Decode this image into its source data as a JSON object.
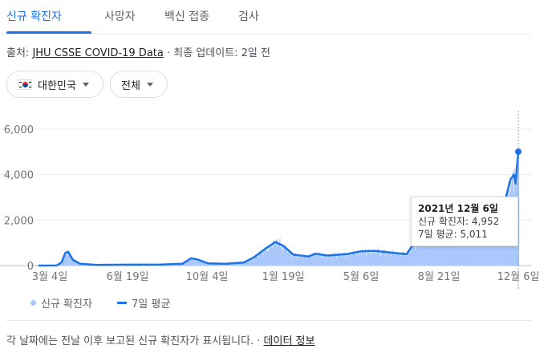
{
  "tabs": [
    {
      "label": "신규 확진자",
      "active": true
    },
    {
      "label": "사망자",
      "active": false
    },
    {
      "label": "백신 접종",
      "active": false
    },
    {
      "label": "검사",
      "active": false
    }
  ],
  "source": {
    "prefix": "출처: ",
    "link": "JHU CSSE COVID-19 Data",
    "suffix": " · 최종 업데이트: 2일 전"
  },
  "filters": {
    "country": {
      "flag": "south-korea-flag",
      "label": "대한민국"
    },
    "scope": {
      "label": "전체"
    }
  },
  "colors": {
    "accent": "#1a73e8",
    "bars": "#a8c7fa",
    "text": "#202124",
    "muted": "#5f6368"
  },
  "chart_data": {
    "type": "bar",
    "overlay": "line",
    "yticks": [
      "6,000",
      "4,000",
      "2,000",
      "0"
    ],
    "ytick_values": [
      6000,
      4000,
      2000,
      0
    ],
    "ylim": [
      0,
      7000
    ],
    "xticks": [
      "3월 4일",
      "6월 19일",
      "10월 4일",
      "1월 19일",
      "5월 6일",
      "8월 21일",
      "12월 6일"
    ],
    "x_range": [
      "2020-01-23",
      "2021-12-06"
    ],
    "series": [
      {
        "name": "신규 확진자",
        "kind": "daily-bars",
        "note": "daily values approximated by weekly-average anchors below"
      },
      {
        "name": "7일 평균",
        "kind": "line",
        "points": [
          [
            "2020-01-23",
            0
          ],
          [
            "2020-02-18",
            5
          ],
          [
            "2020-02-25",
            150
          ],
          [
            "2020-03-01",
            550
          ],
          [
            "2020-03-05",
            610
          ],
          [
            "2020-03-12",
            250
          ],
          [
            "2020-03-22",
            80
          ],
          [
            "2020-04-15",
            30
          ],
          [
            "2020-06-01",
            40
          ],
          [
            "2020-07-15",
            45
          ],
          [
            "2020-08-15",
            80
          ],
          [
            "2020-08-27",
            320
          ],
          [
            "2020-09-05",
            270
          ],
          [
            "2020-09-20",
            100
          ],
          [
            "2020-10-15",
            80
          ],
          [
            "2020-11-10",
            130
          ],
          [
            "2020-11-25",
            370
          ],
          [
            "2020-12-10",
            720
          ],
          [
            "2020-12-25",
            1030
          ],
          [
            "2021-01-05",
            880
          ],
          [
            "2021-01-20",
            480
          ],
          [
            "2021-02-10",
            400
          ],
          [
            "2021-02-20",
            520
          ],
          [
            "2021-03-10",
            440
          ],
          [
            "2021-04-05",
            500
          ],
          [
            "2021-04-25",
            620
          ],
          [
            "2021-05-15",
            650
          ],
          [
            "2021-06-10",
            560
          ],
          [
            "2021-06-30",
            500
          ],
          [
            "2021-07-12",
            1050
          ],
          [
            "2021-07-30",
            1500
          ],
          [
            "2021-08-15",
            1750
          ],
          [
            "2021-09-10",
            1650
          ],
          [
            "2021-09-26",
            2550
          ],
          [
            "2021-10-10",
            2000
          ],
          [
            "2021-10-25",
            1600
          ],
          [
            "2021-11-05",
            2100
          ],
          [
            "2021-11-15",
            2600
          ],
          [
            "2021-11-25",
            3800
          ],
          [
            "2021-11-30",
            4000
          ],
          [
            "2021-12-02",
            3600
          ],
          [
            "2021-12-06",
            5011
          ]
        ]
      }
    ],
    "tooltip": {
      "date": "2021년 12월 6일",
      "cases_label": "신규 확진자",
      "cases": "4,952",
      "avg_label": "7일 평균",
      "avg": "5,011"
    },
    "grid": true
  },
  "legend": {
    "bars_label": "신규 확진자",
    "line_label": "7일 평균"
  },
  "footer": {
    "text": "각 날짜에는 전날 이후 보고된 신규 확진자가 표시됩니다.",
    "separator": " · ",
    "link": "데이터 정보"
  }
}
